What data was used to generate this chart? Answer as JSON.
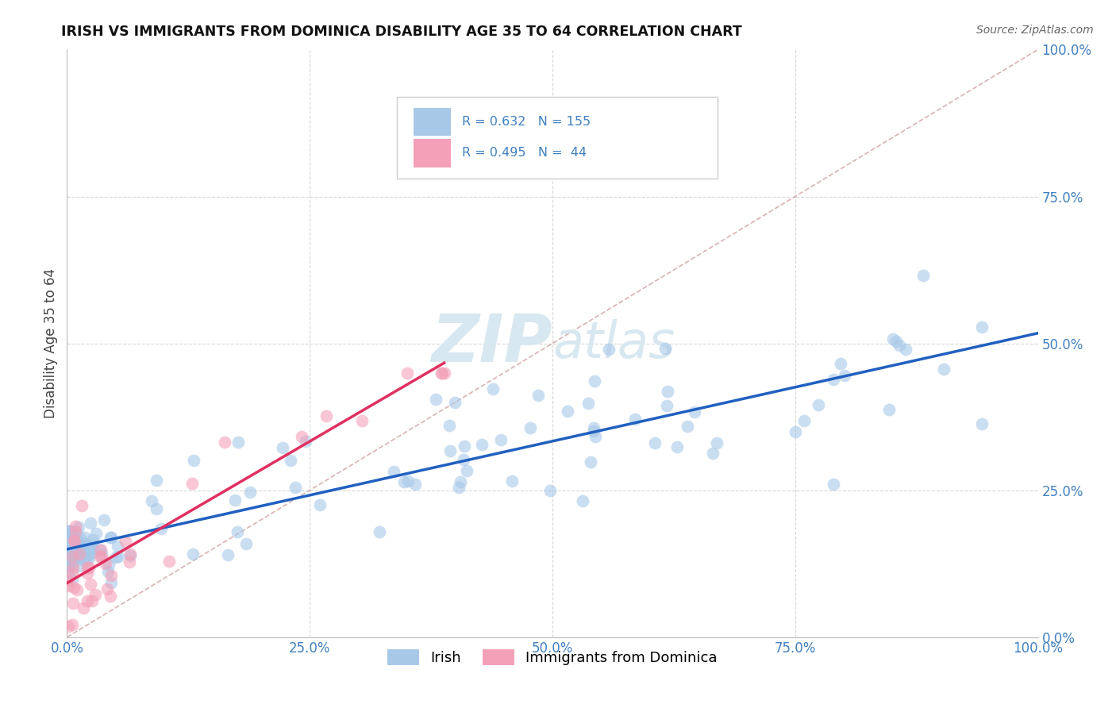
{
  "title": "IRISH VS IMMIGRANTS FROM DOMINICA DISABILITY AGE 35 TO 64 CORRELATION CHART",
  "source": "Source: ZipAtlas.com",
  "ylabel": "Disability Age 35 to 64",
  "legend_irish": "Irish",
  "legend_dominica": "Immigrants from Dominica",
  "R_irish": 0.632,
  "N_irish": 155,
  "R_dominica": 0.495,
  "N_dominica": 44,
  "irish_color": "#a8c8e8",
  "dominica_color": "#f4a0b8",
  "irish_line_color": "#2060c0",
  "dominica_line_color": "#e03060",
  "ref_line_color": "#d0a0a0",
  "watermark_color": "#d8e8f0",
  "bg_color": "#ffffff",
  "grid_color": "#d8d8d8",
  "tick_color": "#4080c0",
  "title_color": "#111111",
  "source_color": "#666666"
}
